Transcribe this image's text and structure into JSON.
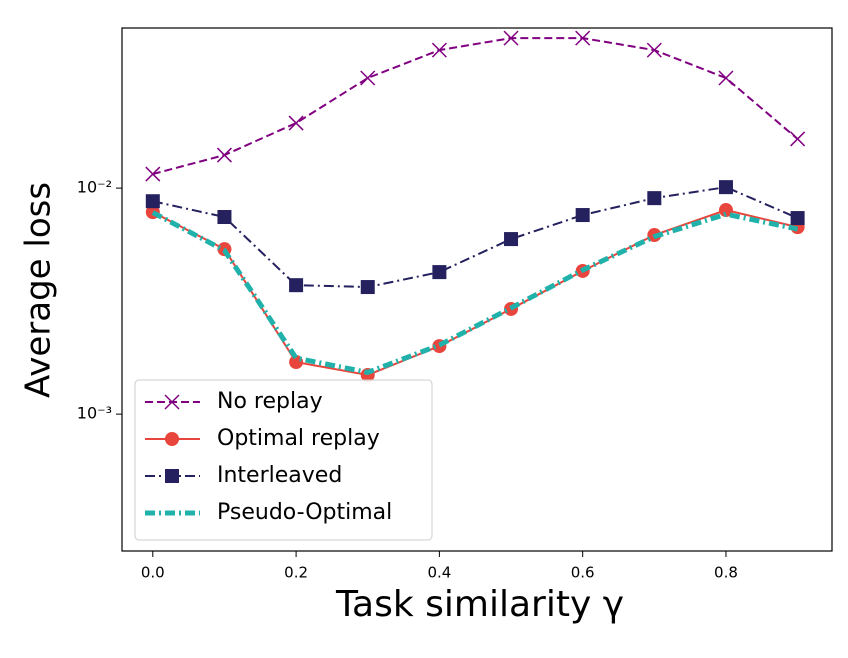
{
  "chart_data": {
    "type": "line",
    "xlabel": "Task similarity γ",
    "ylabel": "Average loss",
    "x": [
      0.0,
      0.1,
      0.2,
      0.3,
      0.4,
      0.5,
      0.6,
      0.7,
      0.8,
      0.9
    ],
    "xlim": [
      -0.043,
      0.948
    ],
    "xticks": [
      {
        "value": 0,
        "label": "0.0"
      },
      0.2,
      0.4,
      0.6,
      0.8
    ],
    "ylim": [
      0.000248,
      0.0511
    ],
    "log_y": true,
    "yticks": [
      {
        "value": 0.001,
        "label": "10⁻³"
      },
      {
        "value": 0.01,
        "label": "10⁻²"
      }
    ],
    "legend": "lower left",
    "series": [
      {
        "name": "No replay",
        "color": "#800080",
        "marker": "x",
        "linestyle": "dashed",
        "width": 2,
        "values": [
          0.01154,
          0.014,
          0.0194,
          0.0307,
          0.0408,
          0.0461,
          0.0461,
          0.0408,
          0.0307,
          0.0165
        ]
      },
      {
        "name": "Optimal replay",
        "color": "#e8453c",
        "marker": "circle",
        "linestyle": "solid",
        "width": 2,
        "values": [
          0.00783,
          0.00537,
          0.0017,
          0.00149,
          0.002,
          0.00292,
          0.0043,
          0.0062,
          0.008,
          0.00672
        ]
      },
      {
        "name": "Interleaved",
        "color": "#24215e",
        "marker": "square",
        "linestyle": "dashdot",
        "width": 2,
        "values": [
          0.00875,
          0.00745,
          0.00372,
          0.00365,
          0.00425,
          0.00595,
          0.0076,
          0.00903,
          0.0101,
          0.00737
        ]
      },
      {
        "name": "Pseudo-Optimal",
        "color": "#20b2aa",
        "marker": "none",
        "linestyle": "dashdot",
        "width": 5,
        "values": [
          0.0078,
          0.0053,
          0.00177,
          0.00153,
          0.00202,
          0.00295,
          0.00434,
          0.0061,
          0.00767,
          0.00659
        ]
      }
    ]
  }
}
